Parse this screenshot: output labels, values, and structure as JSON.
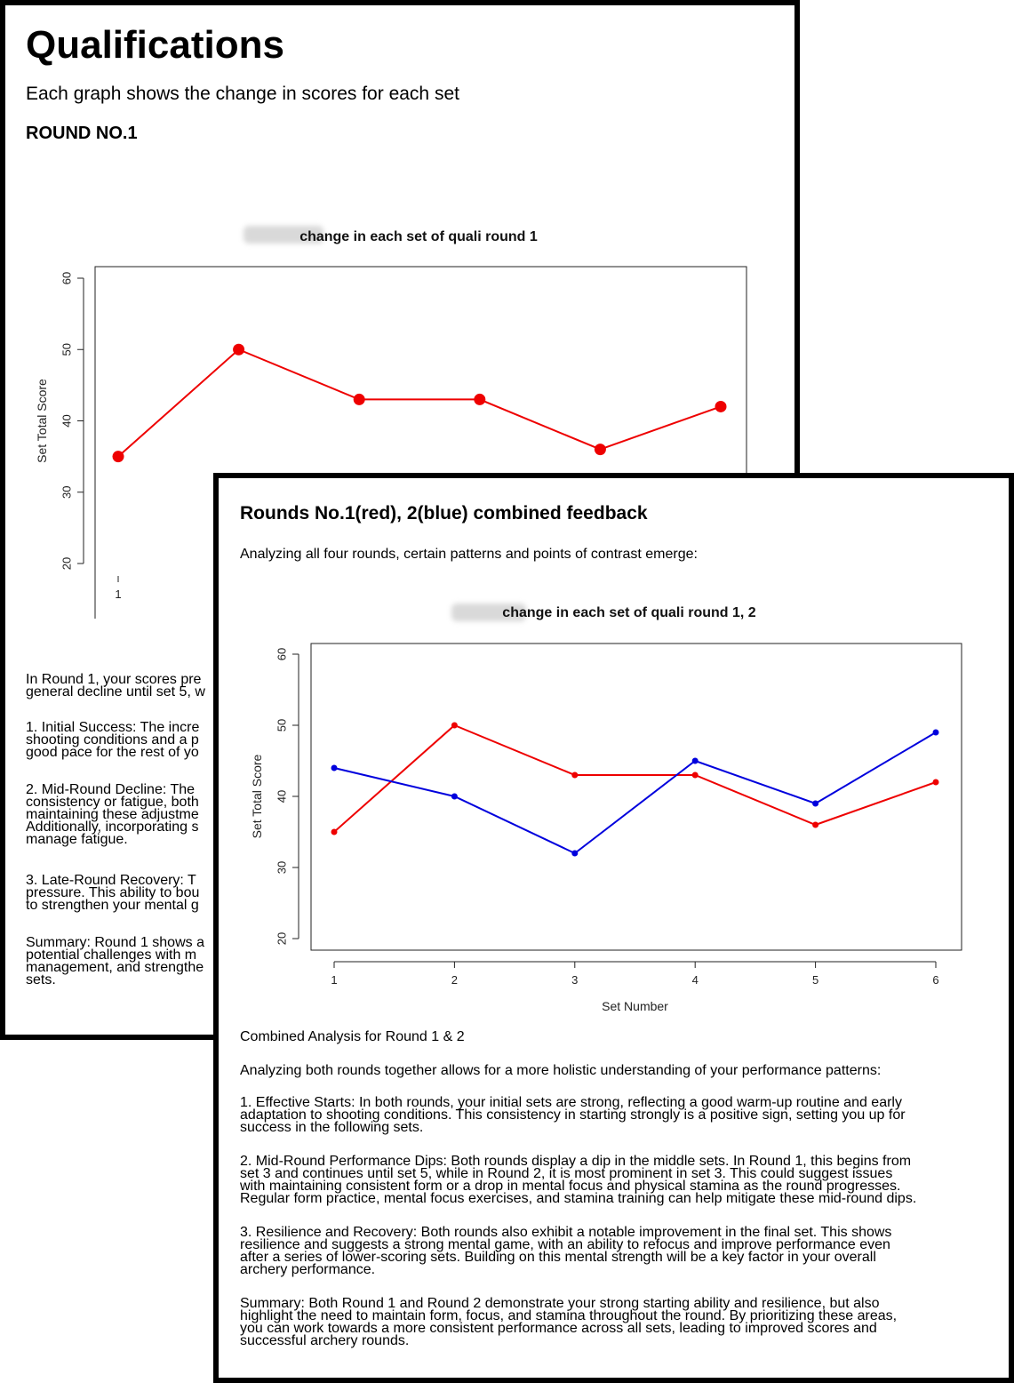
{
  "doc1": {
    "title": "Qualifications",
    "subtitle": "Each graph shows the change in scores for each set",
    "round_label": "ROUND NO.1",
    "paragraphs": [
      [
        "In Round 1, your scores pre",
        "general decline until set 5, w"
      ],
      [
        "1. Initial Success: The incre",
        "shooting conditions and a p",
        "good pace for the rest of yo"
      ],
      [
        "2. Mid-Round Decline: The",
        "consistency or fatigue, both",
        "maintaining these adjustme",
        "Additionally, incorporating s",
        "manage fatigue."
      ],
      [
        "3. Late-Round Recovery: T",
        "pressure. This ability to bou",
        "to strengthen your mental g"
      ],
      [
        "Summary: Round 1 shows a",
        "potential challenges with m",
        "management, and strengthe",
        "sets."
      ]
    ]
  },
  "doc2": {
    "title": "Rounds No.1(red), 2(blue) combined feedback",
    "intro": "Analyzing all four rounds, certain patterns and points of contrast emerge:",
    "analysis_heading": "Combined Analysis for Round 1 & 2",
    "analysis_intro": "Analyzing both rounds together allows for a more holistic understanding of your performance patterns:",
    "paragraphs": [
      [
        "1. Effective Starts: In both rounds, your initial sets are strong, reflecting a good warm-up routine and early",
        "adaptation to shooting conditions. This consistency in starting strongly is a positive sign, setting you up for",
        "success in the following sets."
      ],
      [
        "2. Mid-Round Performance Dips: Both rounds display a dip in the middle sets. In Round 1, this begins from",
        "set 3 and continues until set 5, while in Round 2, it is most prominent in set 3. This could suggest issues",
        "with maintaining consistent form or a drop in mental focus and physical stamina as the round progresses.",
        "Regular form practice, mental focus exercises, and stamina training can help mitigate these mid-round dips."
      ],
      [
        "3. Resilience and Recovery: Both rounds also exhibit a notable improvement in the final set. This shows",
        "resilience and suggests a strong mental game, with an ability to refocus and improve performance even",
        "after a series of lower-scoring sets. Building on this mental strength will be a key factor in your overall",
        "archery performance."
      ],
      [
        "Summary: Both Round 1 and Round 2 demonstrate your strong starting ability and resilience, but also",
        "highlight the need to maintain form, focus, and stamina throughout the round. By prioritizing these areas,",
        "you can work towards a more consistent performance across all sets, leading to improved scores and",
        "successful archery rounds."
      ]
    ]
  },
  "chart_data": [
    {
      "type": "line",
      "title": "change in each set of quali round 1",
      "xlabel": "",
      "ylabel": "Set Total Score",
      "x": [
        1,
        2,
        3,
        4,
        5,
        6
      ],
      "x_ticks": [
        "1"
      ],
      "y_ticks": [
        "20",
        "30",
        "40",
        "50",
        "60"
      ],
      "ylim": [
        20,
        60
      ],
      "series": [
        {
          "values": [
            35,
            50,
            43,
            43,
            36,
            42
          ],
          "color": "#ee0000"
        }
      ]
    },
    {
      "type": "line",
      "title": "change in each set of quali round 1, 2",
      "xlabel": "Set Number",
      "ylabel": "Set Total Score",
      "x": [
        1,
        2,
        3,
        4,
        5,
        6
      ],
      "x_ticks": [
        "1",
        "2",
        "3",
        "4",
        "5",
        "6"
      ],
      "y_ticks": [
        "20",
        "30",
        "40",
        "50",
        "60"
      ],
      "ylim": [
        20,
        60
      ],
      "series": [
        {
          "values": [
            35,
            50,
            43,
            43,
            36,
            42
          ],
          "color": "#ee0000"
        },
        {
          "values": [
            44,
            40,
            32,
            45,
            39,
            49
          ],
          "color": "#0000dd"
        }
      ]
    }
  ]
}
